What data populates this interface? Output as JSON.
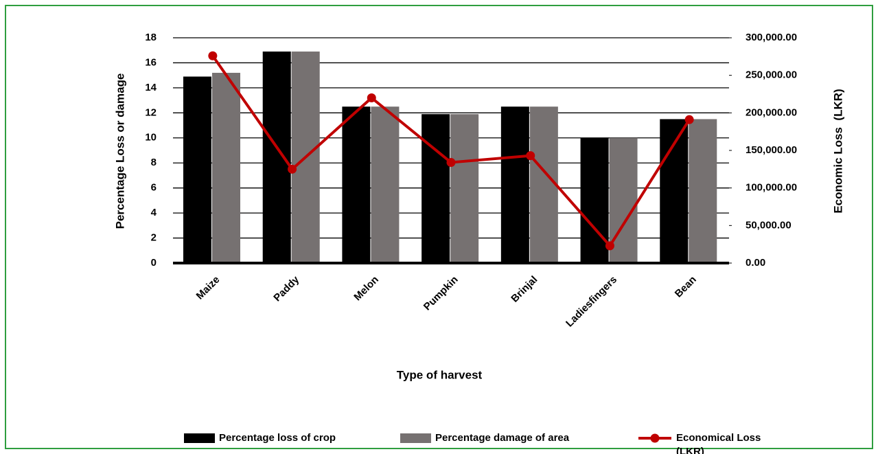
{
  "chart_data": {
    "type": "bar_line",
    "x_label": "Type of harvest",
    "y_label": "Percentage Loss or damage",
    "y2_label": "Economic Loss  (LKR)",
    "categories": [
      "Maize",
      "Paddy",
      "Melon",
      "Pumpkin",
      "Brinjal",
      "Ladiesfingers",
      "Bean"
    ],
    "series": [
      {
        "name": "Percentage loss of crop",
        "color": "#000000",
        "type": "bar",
        "values": [
          14.9,
          16.9,
          12.5,
          11.9,
          12.5,
          10.0,
          11.5
        ]
      },
      {
        "name": "Percentage damage of area",
        "color": "#767171",
        "type": "bar",
        "values": [
          15.2,
          16.9,
          12.5,
          11.9,
          12.5,
          10.0,
          11.5
        ]
      },
      {
        "name": "Economical Loss (LKR)",
        "color": "#c00000",
        "type": "line",
        "axis": "y2",
        "values": [
          276000,
          125000,
          220000,
          134000,
          143000,
          23000,
          191000
        ]
      }
    ],
    "ylim": [
      0,
      18
    ],
    "yticks": [
      0,
      2,
      4,
      6,
      8,
      10,
      12,
      14,
      16,
      18
    ],
    "y2lim": [
      0,
      300000
    ],
    "y2ticks": [
      {
        "value": 0,
        "label": "0.00"
      },
      {
        "value": 50000,
        "label": "50,000.00"
      },
      {
        "value": 100000,
        "label": "100,000.00"
      },
      {
        "value": 150000,
        "label": "150,000.00"
      },
      {
        "value": 200000,
        "label": "200,000.00"
      },
      {
        "value": 250000,
        "label": "250,000.00"
      },
      {
        "value": 300000,
        "label": "300,000.00"
      }
    ],
    "grid": true,
    "legend": "bottom"
  }
}
